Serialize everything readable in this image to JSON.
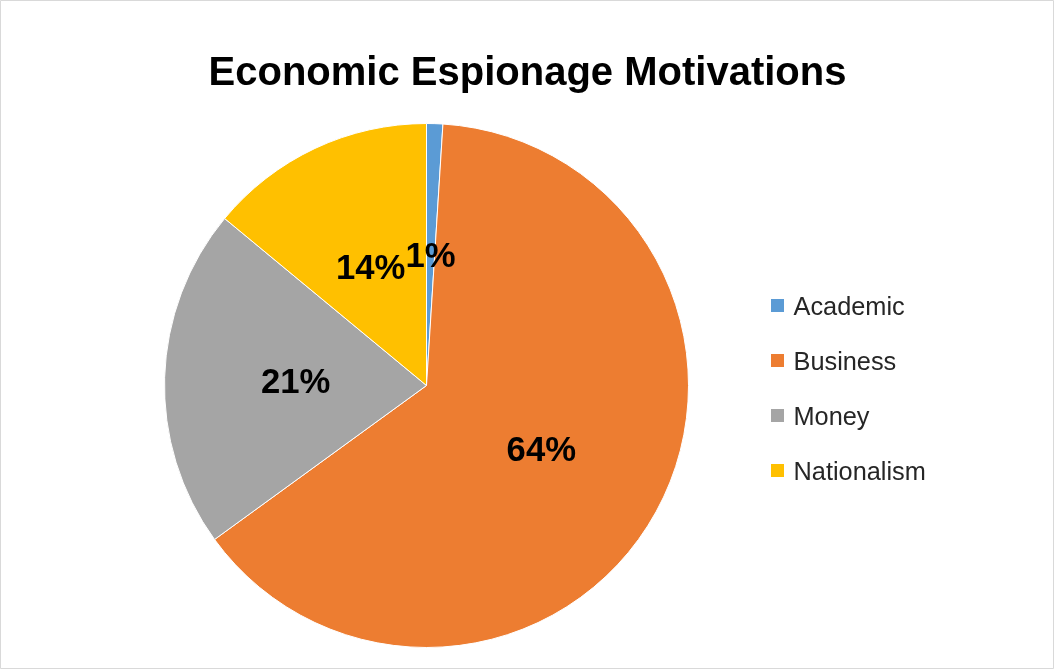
{
  "chart_data": {
    "type": "pie",
    "title": "Economic Espionage Motivations",
    "categories": [
      "Academic",
      "Business",
      "Money",
      "Nationalism"
    ],
    "values": [
      1,
      64,
      21,
      14
    ],
    "colors": [
      "#5b9bd5",
      "#ed7d31",
      "#a5a5a5",
      "#ffc000"
    ],
    "value_labels": [
      "1%",
      "64%",
      "21%",
      "14%"
    ],
    "legend": "right"
  }
}
